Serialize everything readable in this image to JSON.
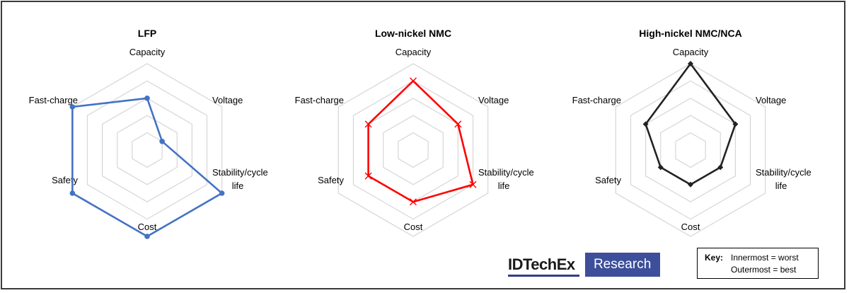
{
  "chart_data": [
    {
      "type": "radar",
      "title": "LFP",
      "axes": [
        "Capacity",
        "Voltage",
        "Stability/cycle life",
        "Cost",
        "Safety",
        "Fast-charge"
      ],
      "levels": 5,
      "values": [
        3,
        1,
        5,
        5,
        5,
        5
      ],
      "color": "#4472c4",
      "marker": "circle"
    },
    {
      "type": "radar",
      "title": "Low-nickel NMC",
      "axes": [
        "Capacity",
        "Voltage",
        "Stability/cycle life",
        "Cost",
        "Safety",
        "Fast-charge"
      ],
      "levels": 5,
      "values": [
        4,
        3,
        4,
        3,
        3,
        3
      ],
      "color": "#ff0000",
      "marker": "x"
    },
    {
      "type": "radar",
      "title": "High-nickel NMC/NCA",
      "axes": [
        "Capacity",
        "Voltage",
        "Stability/cycle life",
        "Cost",
        "Safety",
        "Fast-charge"
      ],
      "levels": 5,
      "values": [
        5,
        3,
        2,
        2,
        2,
        3
      ],
      "color": "#222222",
      "marker": "diamond"
    }
  ],
  "logo": {
    "brand": "IDTechEx",
    "sub": "Research"
  },
  "key": {
    "title": "Key:",
    "line1": "Innermost = worst",
    "line2": "Outermost = best"
  }
}
